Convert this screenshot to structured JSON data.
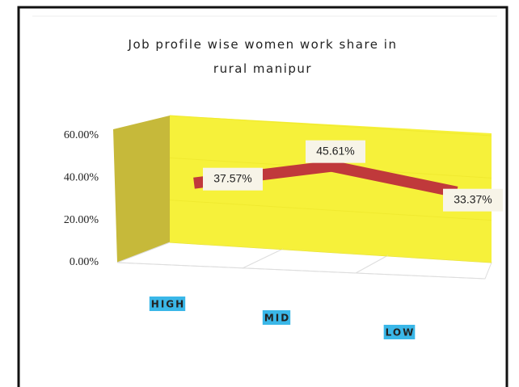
{
  "chart_data": {
    "type": "line",
    "title": "Job profile wise women work share in rural manipur",
    "categories": [
      "HIGH",
      "MID",
      "LOW"
    ],
    "values": [
      37.57,
      45.61,
      33.37
    ],
    "value_labels": [
      "37.57%",
      "45.61%",
      "33.37%"
    ],
    "color": "#c0393b",
    "ylim": [
      0,
      60
    ],
    "yticks": [
      {
        "value": 0,
        "label": "0.00%"
      },
      {
        "value": 20,
        "label": "20.00%"
      },
      {
        "value": 40,
        "label": "40.00%"
      },
      {
        "value": 60,
        "label": "60.00%"
      }
    ]
  }
}
